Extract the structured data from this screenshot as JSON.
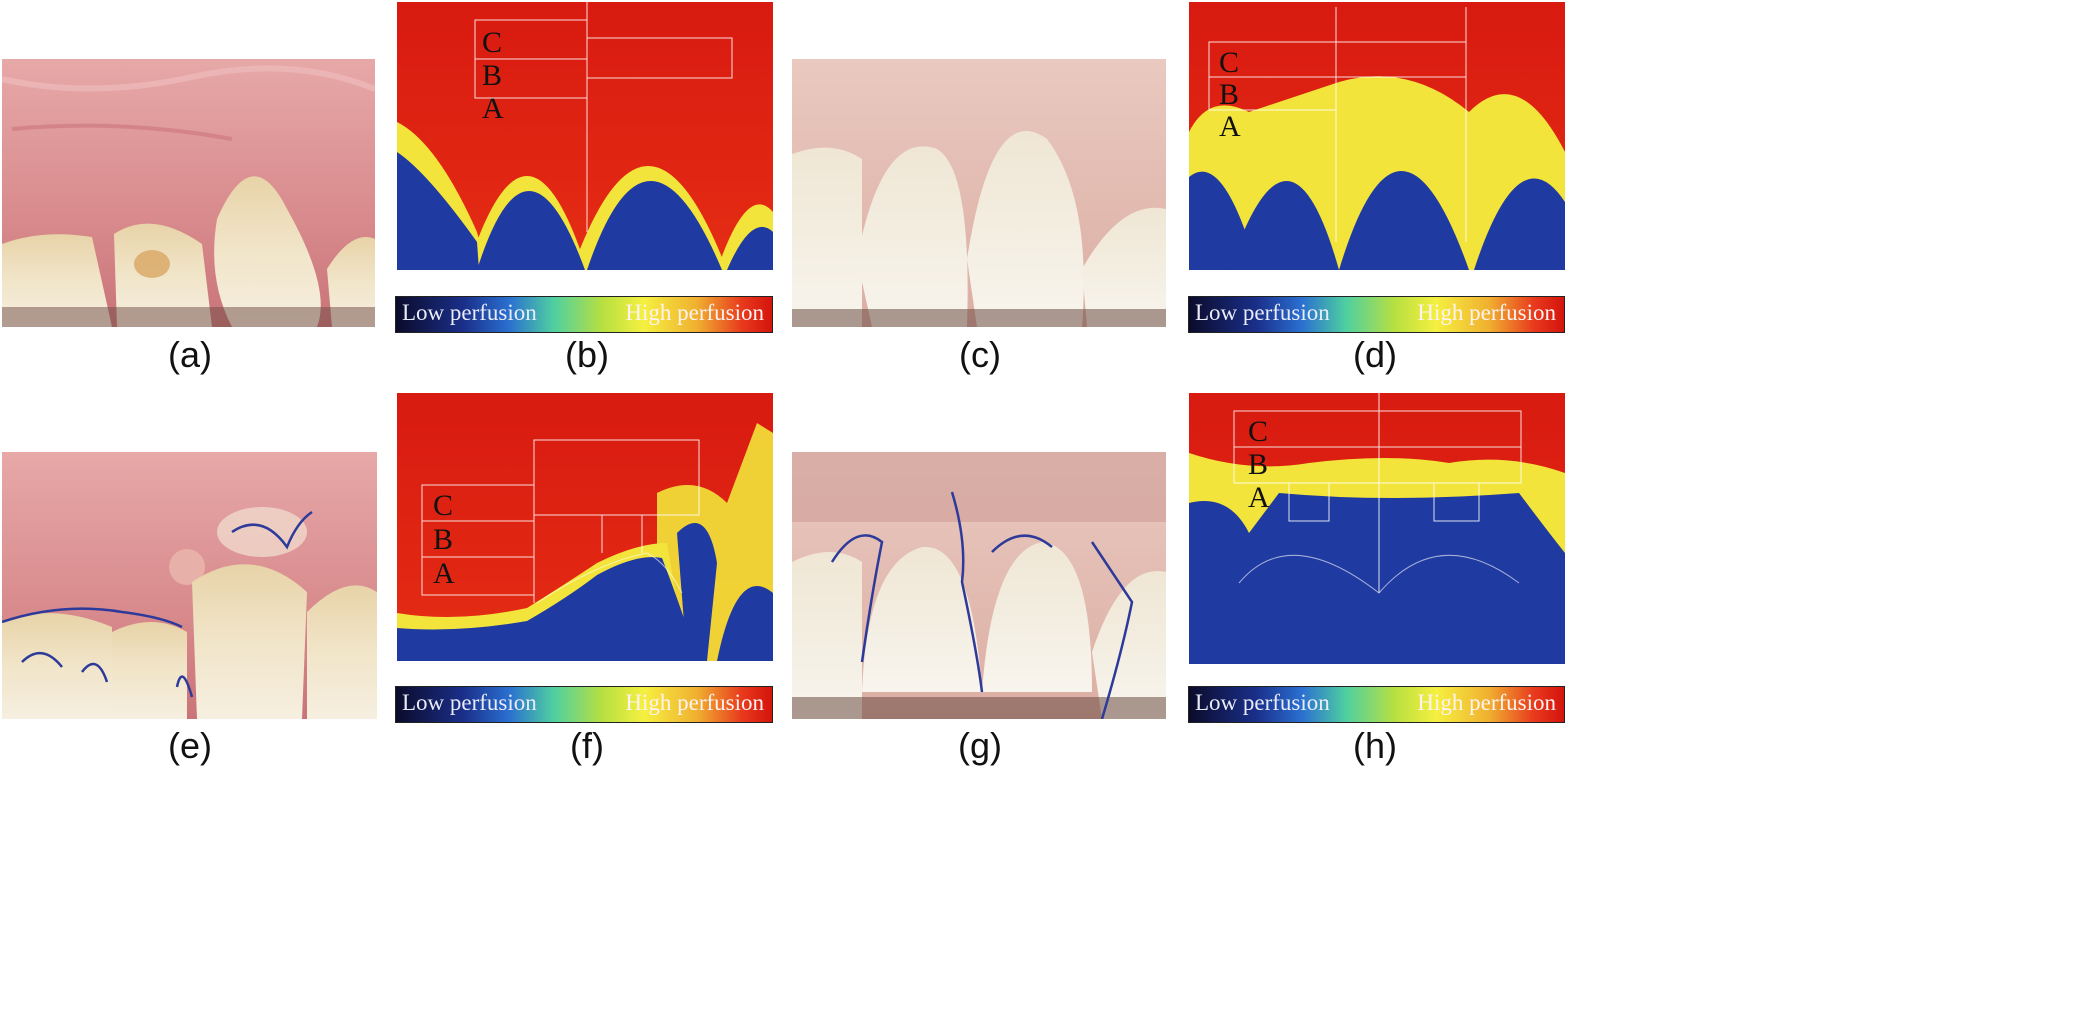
{
  "panels": [
    {
      "label": "(a)"
    },
    {
      "label": "(b)",
      "zones": [
        "C",
        "B",
        "A"
      ]
    },
    {
      "label": "(c)"
    },
    {
      "label": "(d)",
      "zones": [
        "C",
        "B",
        "A"
      ]
    },
    {
      "label": "(e)"
    },
    {
      "label": "(f)",
      "zones": [
        "C",
        "B",
        "A"
      ]
    },
    {
      "label": "(g)"
    },
    {
      "label": "(h)",
      "zones": [
        "C",
        "B",
        "A"
      ]
    }
  ],
  "legend": {
    "low": "Low perfusion",
    "high": "High perfusion"
  },
  "colors": {
    "high": "#d81a10",
    "mid": "#f2e43a",
    "low": "#1f3aa0",
    "gum": "#d98b8b",
    "tooth": "#efe2c4"
  }
}
